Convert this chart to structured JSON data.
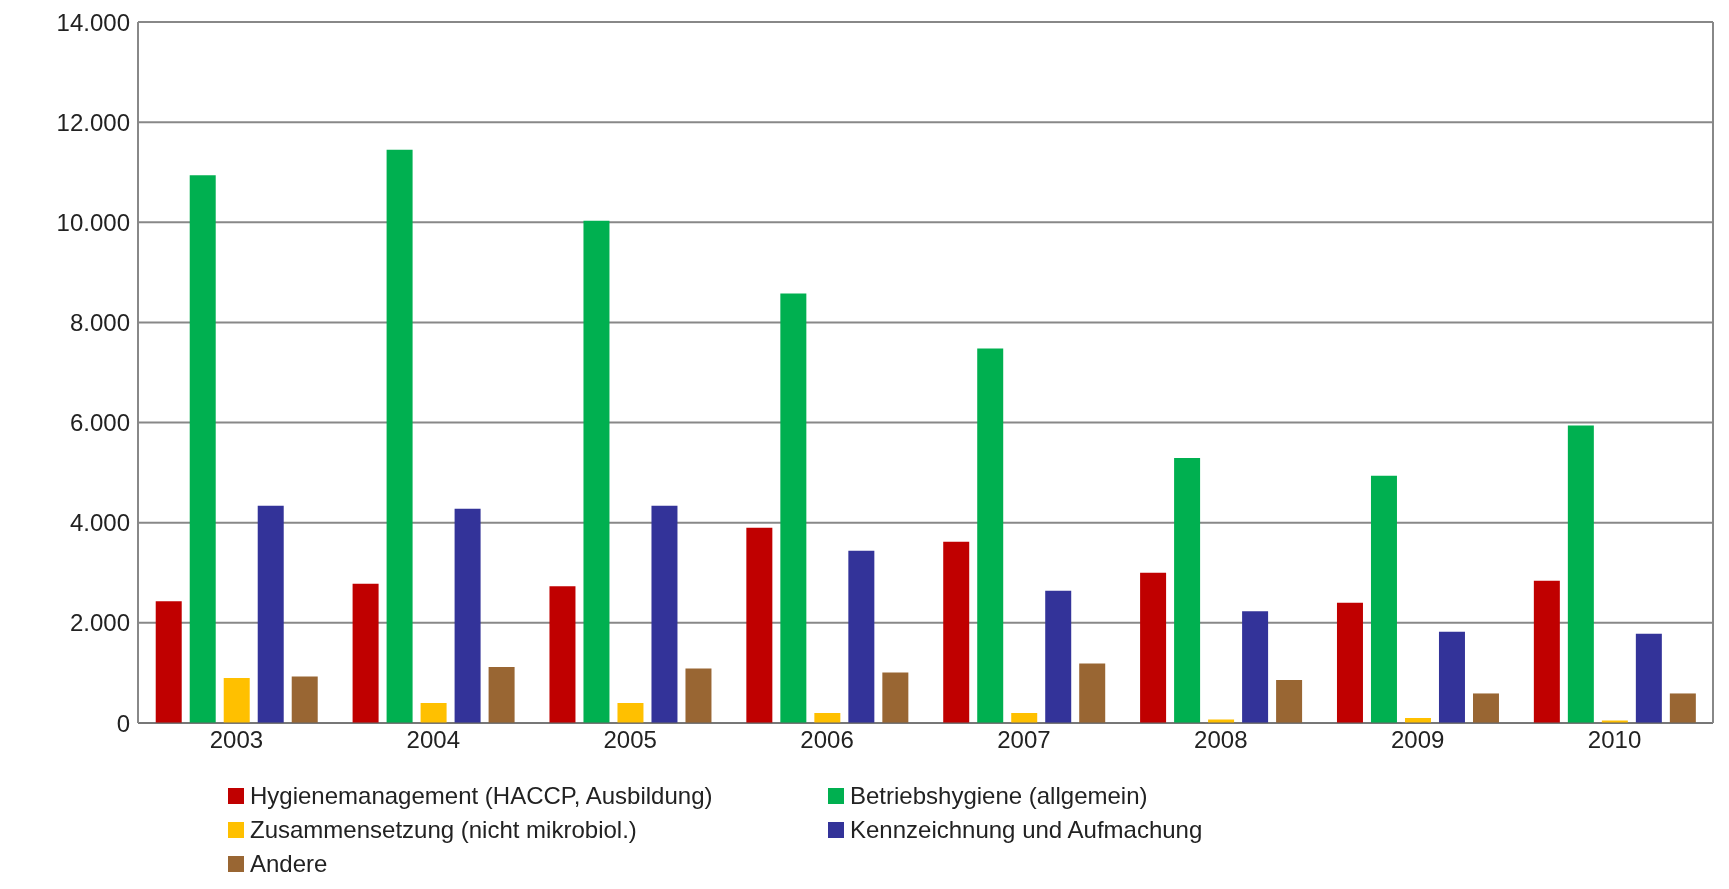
{
  "chart_data": {
    "type": "bar",
    "categories": [
      "2003",
      "2004",
      "2005",
      "2006",
      "2007",
      "2008",
      "2009",
      "2010"
    ],
    "series": [
      {
        "name": "Hygienemanagement (HACCP, Ausbildung)",
        "color": "#c00000",
        "values": [
          2430,
          2780,
          2730,
          3900,
          3620,
          3000,
          2400,
          2840
        ]
      },
      {
        "name": "Betriebshygiene (allgemein)",
        "color": "#00b050",
        "values": [
          10940,
          11450,
          10030,
          8580,
          7480,
          5290,
          4940,
          5940
        ]
      },
      {
        "name": "Zusammensetzung (nicht mikrobiol.)",
        "color": "#ffc000",
        "values": [
          900,
          400,
          400,
          200,
          200,
          70,
          100,
          50
        ]
      },
      {
        "name": "Kennzeichnung und Aufmachung",
        "color": "#333399",
        "values": [
          4340,
          4280,
          4340,
          3440,
          2640,
          2230,
          1820,
          1780
        ]
      },
      {
        "name": "Andere",
        "color": "#996633",
        "values": [
          930,
          1120,
          1090,
          1010,
          1190,
          860,
          590,
          590
        ]
      }
    ],
    "ylim": [
      0,
      14000
    ],
    "yticks": [
      {
        "value": 0,
        "label": "0"
      },
      {
        "value": 2000,
        "label": "2.000"
      },
      {
        "value": 4000,
        "label": "4.000"
      },
      {
        "value": 6000,
        "label": "6.000"
      },
      {
        "value": 8000,
        "label": "8.000"
      },
      {
        "value": 10000,
        "label": "10.000"
      },
      {
        "value": 12000,
        "label": "12.000"
      },
      {
        "value": 14000,
        "label": "14.000"
      }
    ],
    "grid": "y",
    "legend": "bottom"
  }
}
